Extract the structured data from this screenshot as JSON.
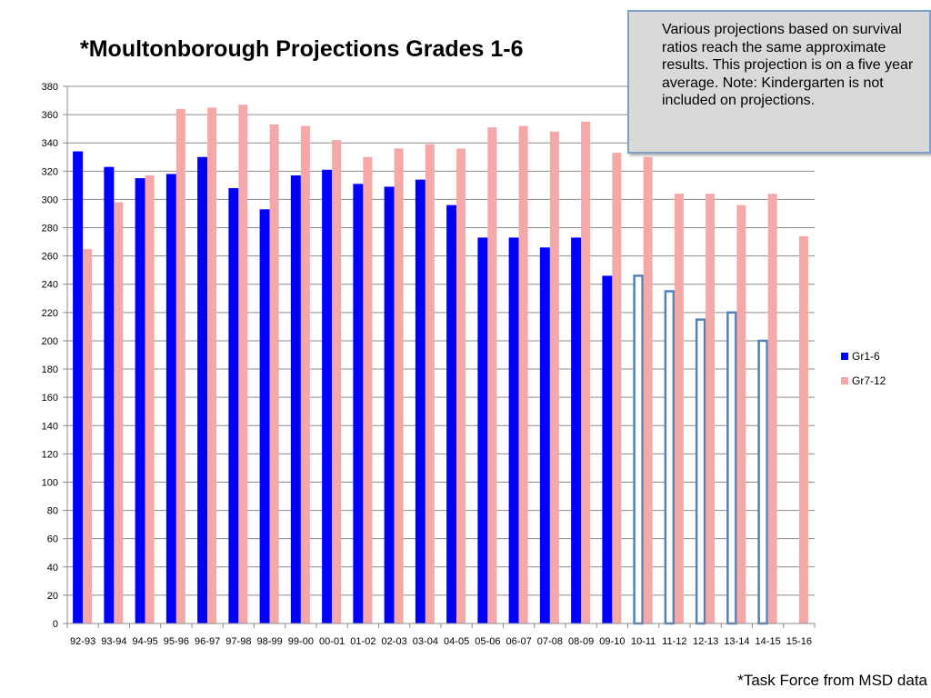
{
  "chart_data": {
    "type": "bar",
    "title": "*Moultonborough Projections Grades 1-6",
    "xlabel": "",
    "ylabel": "",
    "ylim": [
      0,
      380
    ],
    "ytick_step": 20,
    "grid": true,
    "legend_position": "right",
    "categories": [
      "92-93",
      "93-94",
      "94-95",
      "95-96",
      "96-97",
      "97-98",
      "98-99",
      "99-00",
      "00-01",
      "01-02",
      "02-03",
      "03-04",
      "04-05",
      "05-06",
      "06-07",
      "07-08",
      "08-09",
      "09-10",
      "10-11",
      "11-12",
      "12-13",
      "13-14",
      "14-15",
      "15-16"
    ],
    "series": [
      {
        "name": "Gr1-6",
        "color": "#0000ff",
        "values": [
          334,
          323,
          315,
          318,
          330,
          308,
          293,
          317,
          321,
          311,
          309,
          314,
          296,
          273,
          273,
          266,
          273,
          246,
          246,
          235,
          215,
          220,
          200,
          null
        ],
        "projected_from_index": 18,
        "projected_style": "outline",
        "projected_color": "#4f81bd"
      },
      {
        "name": "Gr7-12",
        "color": "#f4a8a8",
        "values": [
          265,
          298,
          317,
          364,
          365,
          367,
          353,
          352,
          342,
          330,
          336,
          339,
          336,
          351,
          352,
          348,
          355,
          333,
          330,
          304,
          304,
          296,
          304,
          274
        ]
      }
    ]
  },
  "note_box": {
    "text": "Various projections based on survival ratios reach the same approximate results. This projection is on a five year average. Note: Kindergarten is not included on projections."
  },
  "source_note": "*Task Force from MSD data"
}
